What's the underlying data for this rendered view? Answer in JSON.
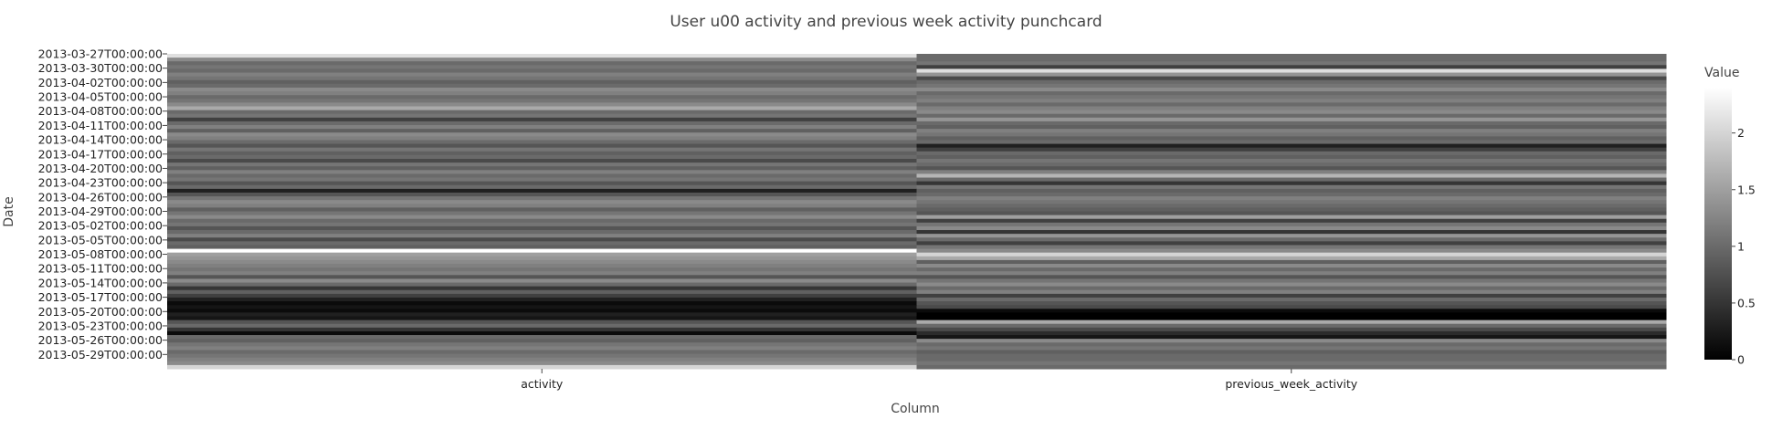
{
  "chart_data": {
    "type": "heatmap",
    "title": "User u00 activity and previous week activity punchcard",
    "xlabel": "Column",
    "ylabel": "Date",
    "columns": [
      "activity",
      "previous_week_activity"
    ],
    "ytick_labels": [
      "2013-03-27T00:00:00",
      "2013-03-30T00:00:00",
      "2013-04-02T00:00:00",
      "2013-04-05T00:00:00",
      "2013-04-08T00:00:00",
      "2013-04-11T00:00:00",
      "2013-04-14T00:00:00",
      "2013-04-17T00:00:00",
      "2013-04-20T00:00:00",
      "2013-04-23T00:00:00",
      "2013-04-26T00:00:00",
      "2013-04-29T00:00:00",
      "2013-05-02T00:00:00",
      "2013-05-05T00:00:00",
      "2013-05-08T00:00:00",
      "2013-05-11T00:00:00",
      "2013-05-14T00:00:00",
      "2013-05-17T00:00:00",
      "2013-05-20T00:00:00",
      "2013-05-23T00:00:00",
      "2013-05-26T00:00:00",
      "2013-05-29T00:00:00"
    ],
    "y_start": "2013-03-27",
    "y_end": "2013-06-01",
    "colorbar": {
      "title": "Value",
      "range": [
        0,
        2.4
      ],
      "ticks": [
        0,
        0.5,
        1,
        1.5,
        2
      ],
      "colorscale": [
        "#000000",
        "#ffffff"
      ]
    },
    "z": [
      [
        2.1,
        1.0
      ],
      [
        1.3,
        1.0
      ],
      [
        1.0,
        1.1
      ],
      [
        1.1,
        0.6
      ],
      [
        1.0,
        2.1
      ],
      [
        1.2,
        1.4
      ],
      [
        1.1,
        0.7
      ],
      [
        0.9,
        1.0
      ],
      [
        1.0,
        1.1
      ],
      [
        1.3,
        1.3
      ],
      [
        1.2,
        1.0
      ],
      [
        1.0,
        1.1
      ],
      [
        1.1,
        1.2
      ],
      [
        1.3,
        1.0
      ],
      [
        1.6,
        1.2
      ],
      [
        1.0,
        1.3
      ],
      [
        1.1,
        1.0
      ],
      [
        0.6,
        1.4
      ],
      [
        1.0,
        1.0
      ],
      [
        1.2,
        0.9
      ],
      [
        0.9,
        1.2
      ],
      [
        1.3,
        1.1
      ],
      [
        1.2,
        0.9
      ],
      [
        1.0,
        1.0
      ],
      [
        0.8,
        0.3
      ],
      [
        1.1,
        0.6
      ],
      [
        0.9,
        1.0
      ],
      [
        1.0,
        0.9
      ],
      [
        0.7,
        1.1
      ],
      [
        1.1,
        1.0
      ],
      [
        0.9,
        0.8
      ],
      [
        1.2,
        1.2
      ],
      [
        1.0,
        1.7
      ],
      [
        1.1,
        1.0
      ],
      [
        0.8,
        0.5
      ],
      [
        1.0,
        1.1
      ],
      [
        0.3,
        0.9
      ],
      [
        0.8,
        1.0
      ],
      [
        1.1,
        1.2
      ],
      [
        1.3,
        1.1
      ],
      [
        1.2,
        1.0
      ],
      [
        0.9,
        0.9
      ],
      [
        1.1,
        0.8
      ],
      [
        1.3,
        1.5
      ],
      [
        1.0,
        0.6
      ],
      [
        1.1,
        1.1
      ],
      [
        0.8,
        1.3
      ],
      [
        1.0,
        0.5
      ],
      [
        1.2,
        1.4
      ],
      [
        0.7,
        1.0
      ],
      [
        1.0,
        0.6
      ],
      [
        0.9,
        1.1
      ],
      [
        2.4,
        1.3
      ],
      [
        1.5,
        2.0
      ],
      [
        1.4,
        1.6
      ],
      [
        1.3,
        0.9
      ],
      [
        1.2,
        1.3
      ],
      [
        1.1,
        1.0
      ],
      [
        1.2,
        1.2
      ],
      [
        0.8,
        0.8
      ],
      [
        1.3,
        1.1
      ],
      [
        1.0,
        1.3
      ],
      [
        0.5,
        1.0
      ],
      [
        0.9,
        1.2
      ],
      [
        0.6,
        0.6
      ],
      [
        0.3,
        1.0
      ],
      [
        0.1,
        0.8
      ],
      [
        0.2,
        0.7
      ],
      [
        0.1,
        0.1
      ],
      [
        0.3,
        0.0
      ],
      [
        0.2,
        0.0
      ],
      [
        0.8,
        1.6
      ],
      [
        1.0,
        1.0
      ],
      [
        0.5,
        0.7
      ],
      [
        0.1,
        0.4
      ],
      [
        1.0,
        0.2
      ],
      [
        0.9,
        1.3
      ],
      [
        1.1,
        1.0
      ],
      [
        1.2,
        1.1
      ],
      [
        1.0,
        0.9
      ],
      [
        1.1,
        1.0
      ],
      [
        1.2,
        1.0
      ],
      [
        1.3,
        1.1
      ],
      [
        2.0,
        1.0
      ]
    ]
  }
}
